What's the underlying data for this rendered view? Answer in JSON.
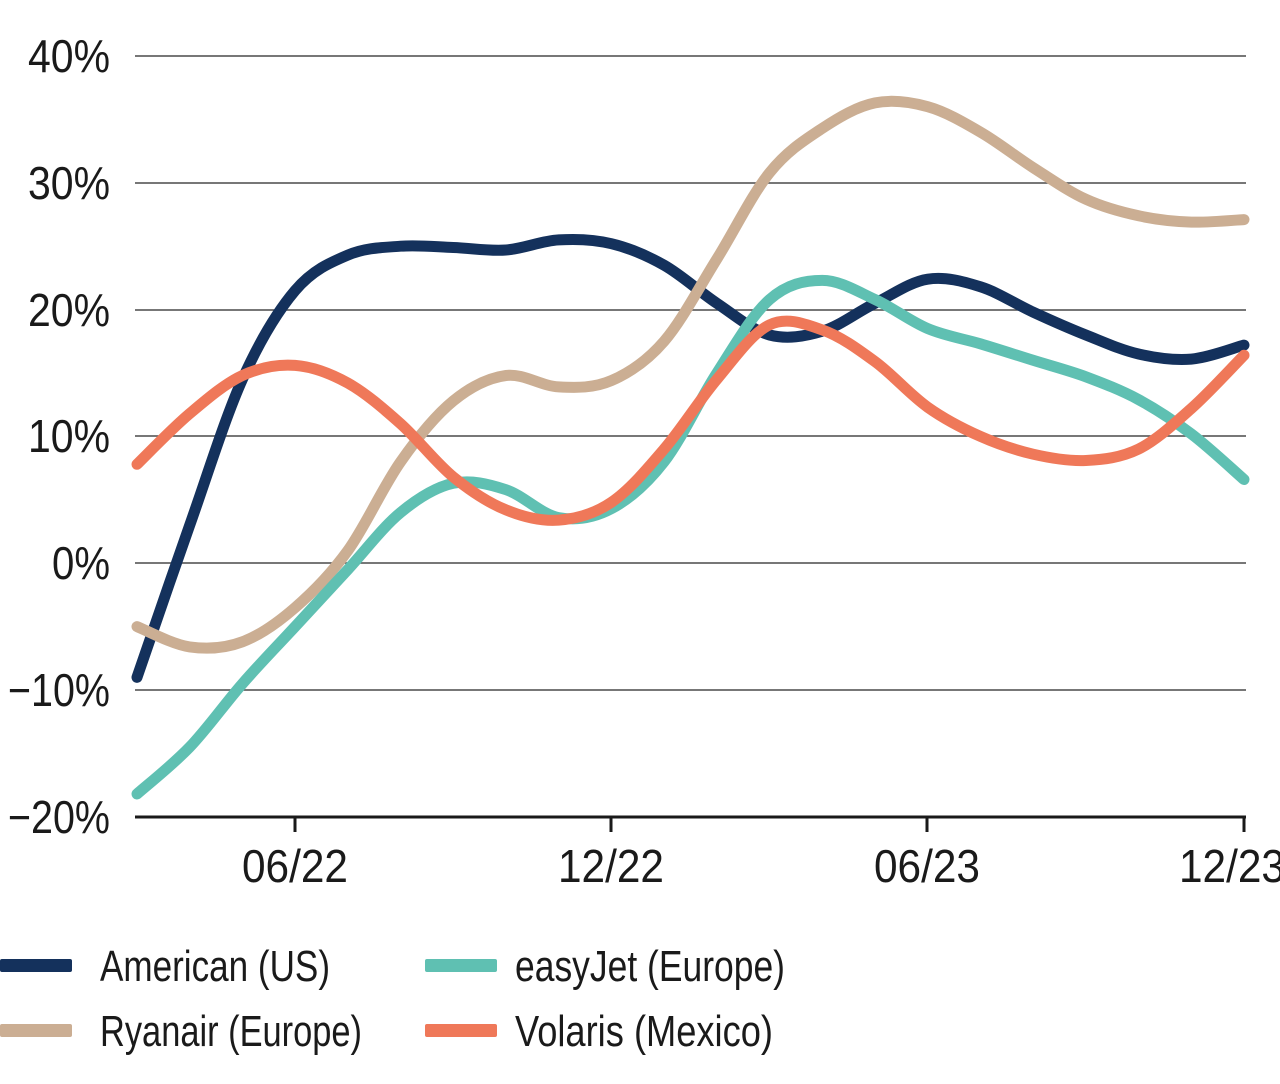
{
  "chart_data": {
    "type": "line",
    "title": "",
    "unit": "%",
    "grid": "horizontal",
    "legend_position": "bottom",
    "ylim": [
      -20,
      40
    ],
    "x": [
      "03/22",
      "04/22",
      "05/22",
      "06/22",
      "07/22",
      "08/22",
      "09/22",
      "10/22",
      "11/22",
      "12/22",
      "01/23",
      "02/23",
      "03/23",
      "04/23",
      "05/23",
      "06/23",
      "07/23",
      "08/23",
      "09/23",
      "10/23",
      "11/23",
      "12/23"
    ],
    "x_ticks": [
      {
        "label": "06/22",
        "index": 3
      },
      {
        "label": "12/22",
        "index": 9
      },
      {
        "label": "06/23",
        "index": 15
      },
      {
        "label": "12/23",
        "index": 21
      }
    ],
    "y_ticks": [
      {
        "label": "40%",
        "value": 40
      },
      {
        "label": "30%",
        "value": 30
      },
      {
        "label": "20%",
        "value": 20
      },
      {
        "label": "10%",
        "value": 10
      },
      {
        "label": "0%",
        "value": 0
      },
      {
        "label": "−10%",
        "value": -10
      },
      {
        "label": "−20%",
        "value": -20
      }
    ],
    "series": [
      {
        "name": "American (US)",
        "color": "#14315c",
        "values": [
          -9.0,
          3.0,
          14.5,
          21.5,
          24.3,
          25.0,
          24.9,
          24.7,
          25.5,
          25.2,
          23.5,
          20.5,
          18.0,
          18.3,
          20.5,
          22.4,
          21.8,
          19.8,
          18.0,
          16.5,
          16.1,
          17.2
        ]
      },
      {
        "name": "Ryanair (Europe)",
        "color": "#cbae93",
        "values": [
          -5.0,
          -6.6,
          -6.2,
          -3.5,
          1.0,
          8.0,
          12.8,
          14.8,
          13.9,
          14.4,
          17.5,
          24.0,
          30.8,
          34.3,
          36.3,
          36.0,
          34.0,
          31.2,
          28.7,
          27.4,
          26.9,
          27.1
        ]
      },
      {
        "name": "easyJet (Europe)",
        "color": "#5fc0b2",
        "values": [
          -18.2,
          -14.5,
          -9.5,
          -5.0,
          -0.5,
          4.0,
          6.3,
          5.8,
          3.6,
          4.3,
          8.0,
          15.0,
          20.8,
          22.3,
          20.8,
          18.5,
          17.3,
          16.0,
          14.7,
          12.9,
          10.2,
          6.6
        ]
      },
      {
        "name": "Volaris (Mexico)",
        "color": "#ef7859",
        "values": [
          7.8,
          11.8,
          14.8,
          15.6,
          14.2,
          11.0,
          6.8,
          4.2,
          3.4,
          4.8,
          9.0,
          14.5,
          18.8,
          18.4,
          15.9,
          12.3,
          10.0,
          8.6,
          8.1,
          9.0,
          12.2,
          16.4
        ]
      }
    ],
    "colors": {
      "grid": "#4a4a4a",
      "axis": "#1a1a1a",
      "text": "#1a1a1a"
    }
  }
}
